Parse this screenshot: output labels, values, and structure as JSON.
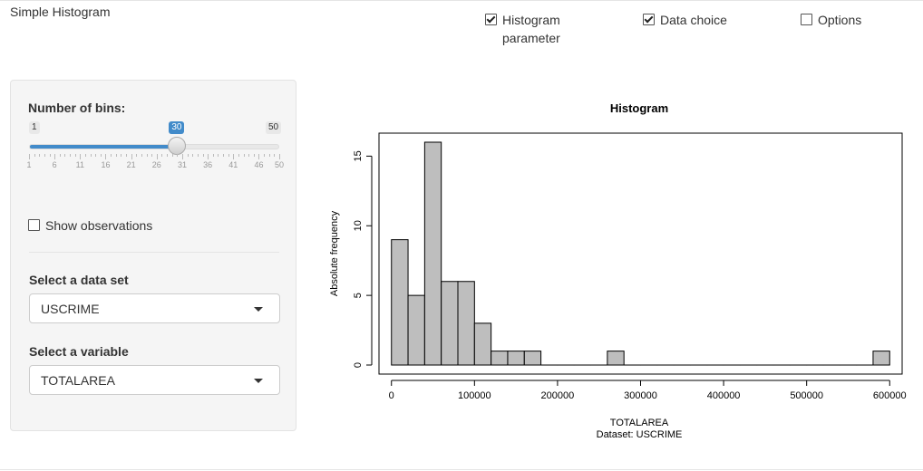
{
  "app": {
    "title": "Simple Histogram"
  },
  "panels": {
    "histogram_parameter": {
      "label_line1": "Histogram",
      "label_line2": "parameter",
      "checked": true
    },
    "data_choice": {
      "label": "Data choice",
      "checked": true
    },
    "options": {
      "label": "Options",
      "checked": false
    }
  },
  "sidebar": {
    "bins": {
      "label": "Number of bins:",
      "min": 1,
      "max": 50,
      "value": 30,
      "min_label": "1",
      "max_label": "50",
      "value_label": "30",
      "tick_labels": [
        "1",
        "6",
        "11",
        "16",
        "21",
        "26",
        "31",
        "36",
        "41",
        "46",
        "50"
      ]
    },
    "show_observations": {
      "label": "Show observations",
      "checked": false
    },
    "dataset": {
      "label": "Select a data set",
      "value": "USCRIME"
    },
    "variable": {
      "label": "Select a variable",
      "value": "TOTALAREA"
    }
  },
  "chart_data": {
    "type": "bar",
    "title": "Histogram",
    "xlabel": "TOTALAREA",
    "xlabel2": "Dataset: USCRIME",
    "ylabel": "Absolute frequency",
    "bin_width": 20000,
    "bin_start": 0,
    "counts": [
      9,
      5,
      16,
      6,
      6,
      3,
      1,
      1,
      1,
      0,
      0,
      0,
      0,
      1,
      0,
      0,
      0,
      0,
      0,
      0,
      0,
      0,
      0,
      0,
      0,
      0,
      0,
      0,
      0,
      1
    ],
    "xlim": [
      0,
      600000
    ],
    "ylim": [
      0,
      16
    ],
    "x_ticks": [
      0,
      100000,
      200000,
      300000,
      400000,
      500000,
      600000
    ],
    "x_tick_labels": [
      "0",
      "100000",
      "200000",
      "300000",
      "400000",
      "500000",
      "600000"
    ],
    "y_ticks": [
      0,
      5,
      10,
      15
    ],
    "y_tick_labels": [
      "0",
      "5",
      "10",
      "15"
    ],
    "bar_color": "#bebebe",
    "grid": false,
    "legend": "none"
  }
}
